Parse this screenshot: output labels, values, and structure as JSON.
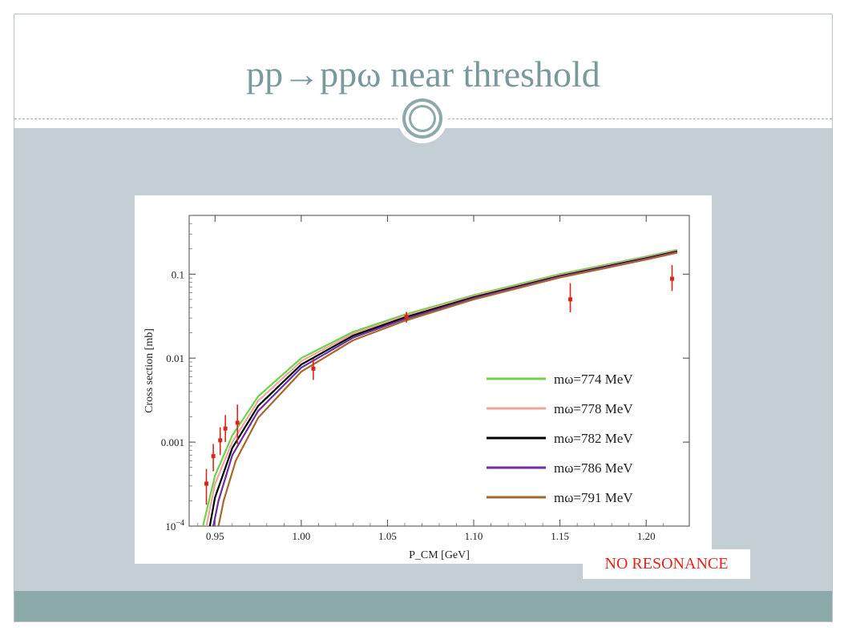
{
  "slide": {
    "title": "pp→ppω near threshold",
    "badge": "NO RESONANCE"
  },
  "chart_data": {
    "type": "line",
    "xlabel": "P_CM [GeV]",
    "ylabel": "Cross section [mb]",
    "x_axis": {
      "min": 0.935,
      "max": 1.225,
      "ticks": [
        0.95,
        1.0,
        1.05,
        1.1,
        1.15,
        1.2
      ],
      "tick_labels": [
        "0.95",
        "1.00",
        "1.05",
        "1.10",
        "1.15",
        "1.20"
      ]
    },
    "y_axis": {
      "scale": "log",
      "min": 0.0001,
      "max": 0.5,
      "ticks": [
        0.0001,
        0.001,
        0.01,
        0.1
      ],
      "tick_labels": [
        "10^-4",
        "0.001",
        "0.01",
        "0.1"
      ]
    },
    "grid": false,
    "legend_position": "bottom-right",
    "series": [
      {
        "name": "mω=774 MeV",
        "color": "#6fd14b",
        "x": [
          0.943,
          0.95,
          0.96,
          0.975,
          1.0,
          1.03,
          1.06,
          1.1,
          1.15,
          1.2,
          1.218
        ],
        "y": [
          0.0001,
          0.0004,
          0.0012,
          0.0035,
          0.01,
          0.0205,
          0.033,
          0.056,
          0.1,
          0.162,
          0.195
        ]
      },
      {
        "name": "mω=778 MeV",
        "color": "#e8a89a",
        "x": [
          0.945,
          0.95,
          0.96,
          0.975,
          1.0,
          1.03,
          1.06,
          1.1,
          1.15,
          1.2,
          1.218
        ],
        "y": [
          0.0001,
          0.00032,
          0.001,
          0.0031,
          0.0092,
          0.0195,
          0.0318,
          0.0545,
          0.097,
          0.158,
          0.19
        ]
      },
      {
        "name": "mω=782 MeV",
        "color": "#000000",
        "x": [
          0.947,
          0.95,
          0.96,
          0.975,
          1.0,
          1.03,
          1.06,
          1.1,
          1.15,
          1.2,
          1.218
        ],
        "y": [
          0.0001,
          0.00022,
          0.00085,
          0.0027,
          0.0084,
          0.0185,
          0.0305,
          0.053,
          0.095,
          0.155,
          0.186
        ]
      },
      {
        "name": "mω=786 MeV",
        "color": "#6b2fa0",
        "x": [
          0.949,
          0.952,
          0.96,
          0.975,
          1.0,
          1.03,
          1.06,
          1.1,
          1.15,
          1.2,
          1.218
        ],
        "y": [
          0.0001,
          0.0002,
          0.0007,
          0.00235,
          0.0077,
          0.0175,
          0.0292,
          0.0515,
          0.093,
          0.152,
          0.183
        ]
      },
      {
        "name": "mω=791 MeV",
        "color": "#a8672a",
        "x": [
          0.952,
          0.955,
          0.962,
          0.975,
          1.0,
          1.03,
          1.06,
          1.1,
          1.15,
          1.2,
          1.218
        ],
        "y": [
          0.0001,
          0.0002,
          0.0006,
          0.00195,
          0.0069,
          0.0163,
          0.0278,
          0.05,
          0.091,
          0.149,
          0.18
        ]
      }
    ],
    "data_points": {
      "color": "#d9261c",
      "x": [
        0.945,
        0.949,
        0.953,
        0.956,
        0.963,
        1.007,
        1.061,
        1.156,
        1.215
      ],
      "y": [
        0.00032,
        0.00068,
        0.00105,
        0.00145,
        0.0017,
        0.0075,
        0.031,
        0.05,
        0.088
      ],
      "y_low": [
        0.00018,
        0.00045,
        0.0007,
        0.001,
        0.00095,
        0.0055,
        0.0265,
        0.035,
        0.063
      ],
      "y_high": [
        0.00048,
        0.00095,
        0.0015,
        0.0021,
        0.0028,
        0.0098,
        0.0355,
        0.078,
        0.128
      ]
    }
  }
}
